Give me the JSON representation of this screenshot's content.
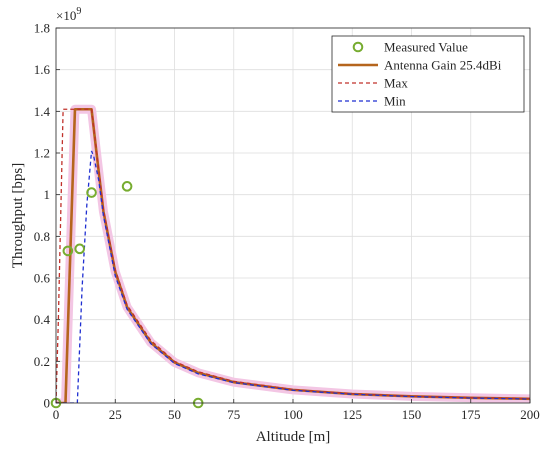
{
  "chart_data": {
    "type": "line",
    "xlabel": "Altitude [m]",
    "ylabel": "Throughput [bps]",
    "y_exponent_label": "×10",
    "y_exponent_power": "9",
    "xlim": [
      0,
      200
    ],
    "ylim": [
      0,
      1.8
    ],
    "y_scale_factor": 1000000000,
    "x_ticks": [
      0,
      25,
      50,
      75,
      100,
      125,
      150,
      175,
      200
    ],
    "y_ticks": [
      0,
      0.2,
      0.4,
      0.6,
      0.8,
      1,
      1.2,
      1.4,
      1.6,
      1.8
    ],
    "x_tick_labels": [
      "0",
      "25",
      "50",
      "75",
      "100",
      "125",
      "150",
      "175",
      "200"
    ],
    "y_tick_labels": [
      "0",
      "0.2",
      "0.4",
      "0.6",
      "0.8",
      "1",
      "1.2",
      "1.4",
      "1.6",
      "1.8"
    ],
    "grid": true,
    "legend_position": "top-right",
    "series": [
      {
        "name": "Measured Value",
        "style": "markers",
        "color": "#77ac30",
        "x": [
          0,
          5,
          10,
          15,
          30,
          60
        ],
        "y": [
          0,
          0.73,
          0.74,
          1.01,
          1.04,
          0
        ]
      },
      {
        "name": "Antenna Gain 25.4dBi",
        "style": "solid",
        "color": "#b5651d",
        "x": [
          0,
          4,
          8,
          10,
          12,
          14,
          15,
          17,
          20,
          25,
          30,
          40,
          50,
          60,
          75,
          100,
          125,
          150,
          175,
          200
        ],
        "y": [
          0,
          0,
          1.41,
          1.41,
          1.41,
          1.41,
          1.41,
          1.21,
          0.92,
          0.63,
          0.46,
          0.29,
          0.195,
          0.145,
          0.1,
          0.063,
          0.043,
          0.032,
          0.025,
          0.02
        ]
      },
      {
        "name": "Max",
        "style": "dashed",
        "color": "#c0302a",
        "x": [
          0,
          1,
          3,
          8,
          14,
          15,
          17,
          20,
          25,
          30,
          40,
          50,
          60,
          75,
          100,
          125,
          150,
          175,
          200
        ],
        "y": [
          0,
          0.4,
          1.41,
          1.41,
          1.41,
          1.41,
          1.22,
          0.93,
          0.64,
          0.47,
          0.3,
          0.2,
          0.15,
          0.104,
          0.065,
          0.045,
          0.033,
          0.026,
          0.021
        ]
      },
      {
        "name": "Min",
        "style": "dashed",
        "color": "#1f2fd1",
        "x": [
          0,
          9,
          11,
          13,
          15,
          16,
          18,
          20,
          25,
          30,
          40,
          50,
          60,
          75,
          100,
          125,
          150,
          175,
          200
        ],
        "y": [
          0,
          0,
          0.55,
          0.95,
          1.21,
          1.18,
          1.07,
          0.9,
          0.61,
          0.45,
          0.285,
          0.19,
          0.14,
          0.098,
          0.061,
          0.042,
          0.031,
          0.024,
          0.019
        ]
      }
    ]
  }
}
